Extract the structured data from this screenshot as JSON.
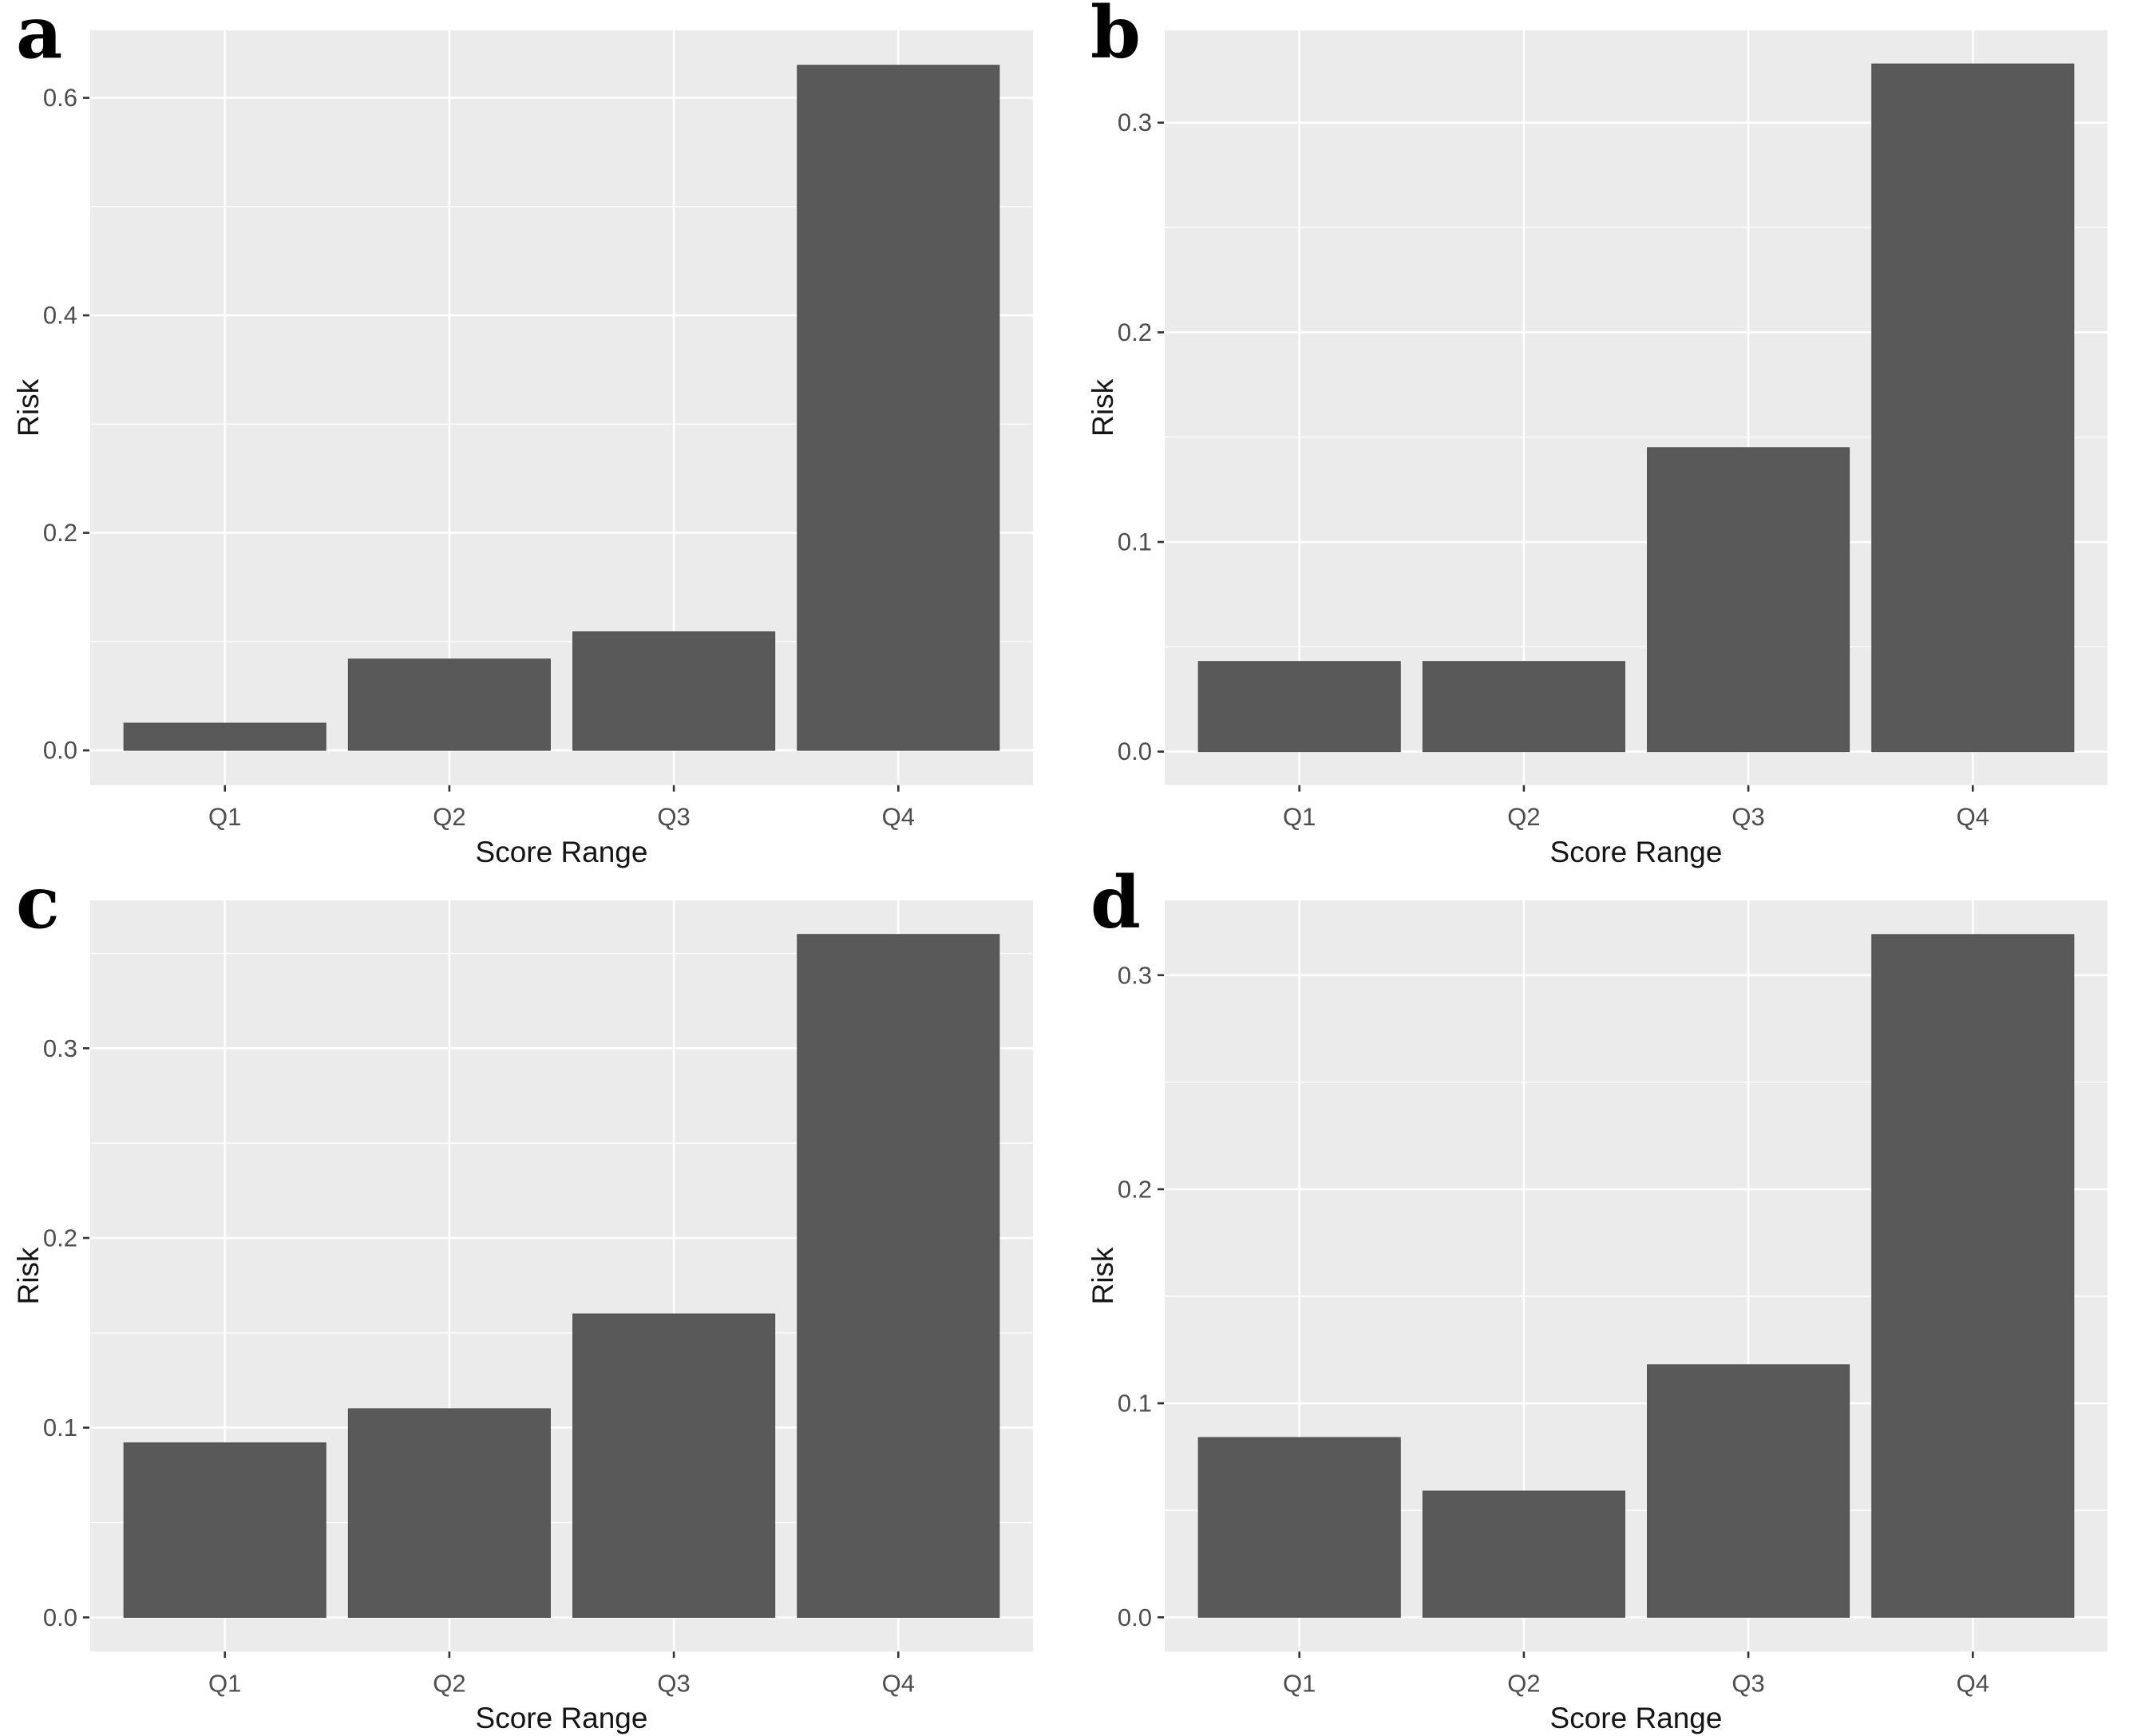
{
  "figure": {
    "description": "Four-panel bar chart figure showing Risk by Score Range quartile",
    "panels": [
      "a",
      "b",
      "c",
      "d"
    ]
  },
  "style": {
    "bar_color": "#595959",
    "bar_edge_color": "#4e4e4e",
    "panel_bg": "#ebebeb",
    "grid_color": "#ffffff",
    "tick_label_color": "#4d4d4d",
    "axis_title_color": "#151515",
    "tick_mark_color": "#333333",
    "page_bg": "#ffffff"
  },
  "chart_data": [
    {
      "type": "bar",
      "panel_label": "a",
      "title": "",
      "categories": [
        "Q1",
        "Q2",
        "Q3",
        "Q4"
      ],
      "values": [
        0.025,
        0.084,
        0.109,
        0.63
      ],
      "xlabel": "Score Range",
      "ylabel": "Risk",
      "yticks": [
        0.0,
        0.2,
        0.4,
        0.6
      ],
      "ytick_labels": [
        "0.0",
        "0.2",
        "0.4",
        "0.6"
      ],
      "ylim": [
        -0.032,
        0.662
      ],
      "grid": "on",
      "legend": "none"
    },
    {
      "type": "bar",
      "panel_label": "b",
      "title": "",
      "categories": [
        "Q1",
        "Q2",
        "Q3",
        "Q4"
      ],
      "values": [
        0.043,
        0.043,
        0.145,
        0.328
      ],
      "xlabel": "Score Range",
      "ylabel": "Risk",
      "yticks": [
        0.0,
        0.1,
        0.2,
        0.3
      ],
      "ytick_labels": [
        "0.0",
        "0.1",
        "0.2",
        "0.3"
      ],
      "ylim": [
        -0.016,
        0.344
      ],
      "grid": "on",
      "legend": "none"
    },
    {
      "type": "bar",
      "panel_label": "c",
      "title": "",
      "categories": [
        "Q1",
        "Q2",
        "Q3",
        "Q4"
      ],
      "values": [
        0.092,
        0.11,
        0.16,
        0.36
      ],
      "xlabel": "Score Range",
      "ylabel": "Risk",
      "yticks": [
        0.0,
        0.1,
        0.2,
        0.3
      ],
      "ytick_labels": [
        "0.0",
        "0.1",
        "0.2",
        "0.3"
      ],
      "ylim": [
        -0.018,
        0.378
      ],
      "grid": "on",
      "legend": "none"
    },
    {
      "type": "bar",
      "panel_label": "d",
      "title": "",
      "categories": [
        "Q1",
        "Q2",
        "Q3",
        "Q4"
      ],
      "values": [
        0.084,
        0.059,
        0.118,
        0.319
      ],
      "xlabel": "Score Range",
      "ylabel": "Risk",
      "yticks": [
        0.0,
        0.1,
        0.2,
        0.3
      ],
      "ytick_labels": [
        "0.0",
        "0.1",
        "0.2",
        "0.3"
      ],
      "ylim": [
        -0.016,
        0.335
      ],
      "grid": "on",
      "legend": "none"
    }
  ]
}
